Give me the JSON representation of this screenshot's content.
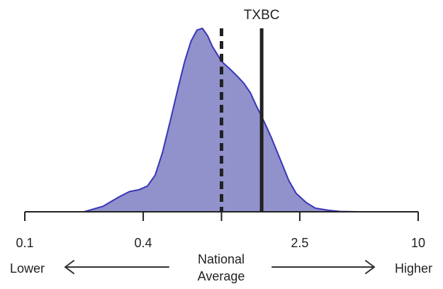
{
  "chart_data": {
    "type": "area",
    "x_scale": "log",
    "xlim": [
      0.1,
      10
    ],
    "ticks": [
      {
        "value": 0.1,
        "label": "0.1"
      },
      {
        "value": 0.4,
        "label": "0.4"
      },
      {
        "value": 1,
        "label": ""
      },
      {
        "value": 2.5,
        "label": "2.5"
      },
      {
        "value": 10,
        "label": "10"
      }
    ],
    "density": {
      "x": [
        0.2,
        0.25,
        0.3,
        0.34,
        0.38,
        0.42,
        0.46,
        0.5,
        0.55,
        0.6,
        0.65,
        0.7,
        0.75,
        0.8,
        0.85,
        0.9,
        0.95,
        1.0,
        1.1,
        1.2,
        1.3,
        1.4,
        1.5,
        1.6,
        1.7,
        1.8,
        2.0,
        2.2,
        2.4,
        2.7,
        3.0,
        3.5,
        4.0,
        5.0
      ],
      "y": [
        0.0,
        0.03,
        0.08,
        0.11,
        0.12,
        0.14,
        0.2,
        0.32,
        0.5,
        0.67,
        0.82,
        0.93,
        0.99,
        1.0,
        0.96,
        0.9,
        0.86,
        0.82,
        0.78,
        0.74,
        0.7,
        0.65,
        0.58,
        0.52,
        0.46,
        0.4,
        0.28,
        0.17,
        0.1,
        0.05,
        0.02,
        0.008,
        0.002,
        0.0
      ],
      "fill_color": "#9191cc",
      "line_color": "#3a36b8"
    },
    "markers": [
      {
        "name": "TXBC",
        "x": 1.6,
        "style": "solid",
        "label": "TXBC"
      },
      {
        "name": "National Average",
        "x": 1.0,
        "style": "dashed",
        "label": ""
      }
    ],
    "direction_labels": {
      "left": "Lower",
      "right": "Higher",
      "center_line1": "National",
      "center_line2": "Average"
    }
  }
}
